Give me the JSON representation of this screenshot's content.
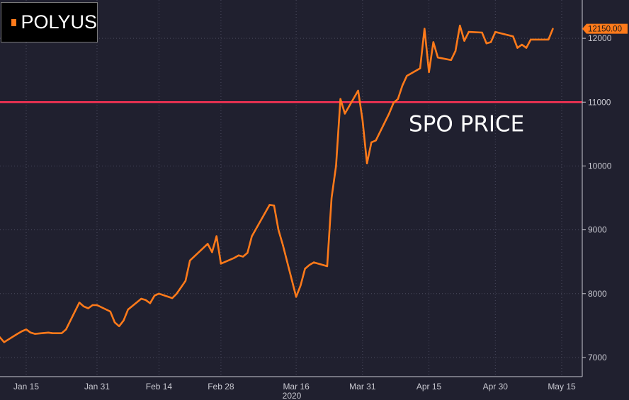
{
  "chart_data": {
    "type": "line",
    "title": "",
    "xlabel": "2020",
    "ylabel": "",
    "x_tick_labels": [
      "Jan 15",
      "Jan 31",
      "Feb 14",
      "Feb 28",
      "Mar 16",
      "Mar 31",
      "Apr 15",
      "Apr 30",
      "May 15"
    ],
    "y_tick_labels": [
      "7000",
      "8000",
      "9000",
      "10000",
      "11000",
      "12000"
    ],
    "ylim": [
      6700,
      12600
    ],
    "grid": true,
    "series": [
      {
        "name": "POLYUS",
        "color": "#ff7a1a",
        "x": [
          "2020-01-09",
          "2020-01-10",
          "2020-01-13",
          "2020-01-14",
          "2020-01-15",
          "2020-01-16",
          "2020-01-17",
          "2020-01-20",
          "2020-01-21",
          "2020-01-22",
          "2020-01-23",
          "2020-01-24",
          "2020-01-27",
          "2020-01-28",
          "2020-01-29",
          "2020-01-30",
          "2020-01-31",
          "2020-02-03",
          "2020-02-04",
          "2020-02-05",
          "2020-02-06",
          "2020-02-07",
          "2020-02-10",
          "2020-02-11",
          "2020-02-12",
          "2020-02-13",
          "2020-02-14",
          "2020-02-17",
          "2020-02-18",
          "2020-02-19",
          "2020-02-20",
          "2020-02-21",
          "2020-02-25",
          "2020-02-26",
          "2020-02-27",
          "2020-02-28",
          "2020-03-02",
          "2020-03-03",
          "2020-03-04",
          "2020-03-05",
          "2020-03-06",
          "2020-03-10",
          "2020-03-11",
          "2020-03-12",
          "2020-03-13",
          "2020-03-16",
          "2020-03-17",
          "2020-03-18",
          "2020-03-19",
          "2020-03-20",
          "2020-03-23",
          "2020-03-24",
          "2020-03-25",
          "2020-03-26",
          "2020-03-27",
          "2020-03-30",
          "2020-03-31",
          "2020-04-01",
          "2020-04-02",
          "2020-04-03",
          "2020-04-06",
          "2020-04-07",
          "2020-04-08",
          "2020-04-09",
          "2020-04-10",
          "2020-04-13",
          "2020-04-14",
          "2020-04-15",
          "2020-04-16",
          "2020-04-17",
          "2020-04-20",
          "2020-04-21",
          "2020-04-22",
          "2020-04-23",
          "2020-04-24",
          "2020-04-27",
          "2020-04-28",
          "2020-04-29",
          "2020-04-30",
          "2020-05-04",
          "2020-05-05",
          "2020-05-06",
          "2020-05-07",
          "2020-05-08",
          "2020-05-12",
          "2020-05-13"
        ],
        "values": [
          7320,
          7240,
          7370,
          7410,
          7440,
          7390,
          7370,
          7390,
          7380,
          7380,
          7380,
          7440,
          7860,
          7800,
          7770,
          7820,
          7820,
          7720,
          7550,
          7490,
          7580,
          7750,
          7920,
          7900,
          7850,
          7970,
          8000,
          7930,
          8000,
          8100,
          8200,
          8520,
          8780,
          8650,
          8900,
          8470,
          8560,
          8600,
          8580,
          8640,
          8900,
          9390,
          9380,
          9000,
          8760,
          7950,
          8130,
          8390,
          8450,
          8490,
          8430,
          9500,
          10000,
          11050,
          10820,
          11180,
          10720,
          10040,
          10370,
          10400,
          10820,
          10990,
          11050,
          11260,
          11410,
          11530,
          12150,
          11470,
          11940,
          11700,
          11660,
          11800,
          12200,
          11960,
          12100,
          12090,
          11920,
          11940,
          12100,
          12030,
          11850,
          11900,
          11850,
          11980,
          11980,
          12150
        ]
      }
    ],
    "reference_line": {
      "y": 11000,
      "label": "SPO PRICE",
      "color": "#ff3355"
    },
    "last_value_label": "12150.00",
    "legend": {
      "placement": "top-left",
      "label": "POLYUS"
    },
    "colors": {
      "background": "#20202f",
      "grid": "#4a4a5e",
      "axis_text": "#c8c8d0",
      "line": "#ff7a1a",
      "reference": "#ff3355",
      "text": "#ffffff"
    }
  }
}
